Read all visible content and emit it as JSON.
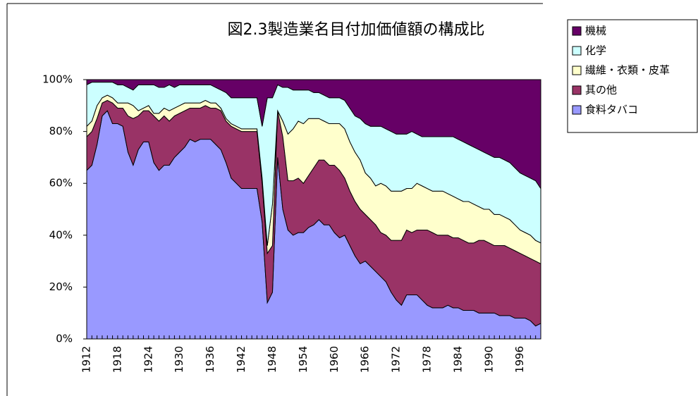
{
  "chart_data": {
    "type": "stacked_area",
    "title": "図2.3製造業名目付加価値額の構成比",
    "x": [
      1912,
      1913,
      1914,
      1915,
      1916,
      1917,
      1918,
      1919,
      1920,
      1921,
      1922,
      1923,
      1924,
      1925,
      1926,
      1927,
      1928,
      1929,
      1930,
      1931,
      1932,
      1933,
      1934,
      1935,
      1936,
      1937,
      1938,
      1939,
      1940,
      1941,
      1942,
      1943,
      1944,
      1945,
      1946,
      1947,
      1948,
      1949,
      1950,
      1951,
      1952,
      1953,
      1954,
      1955,
      1956,
      1957,
      1958,
      1959,
      1960,
      1961,
      1962,
      1963,
      1964,
      1965,
      1966,
      1967,
      1968,
      1969,
      1970,
      1971,
      1972,
      1973,
      1974,
      1975,
      1976,
      1977,
      1978,
      1979,
      1980,
      1981,
      1982,
      1983,
      1984,
      1985,
      1986,
      1987,
      1988,
      1989,
      1990,
      1991,
      1992,
      1993,
      1994,
      1995,
      1996,
      1997,
      1998,
      1999,
      2000
    ],
    "series": [
      {
        "name": "食料タバコ",
        "color": "#9999ff",
        "values": [
          65,
          67,
          75,
          86,
          88,
          83,
          83,
          82,
          72,
          67,
          73,
          76,
          76,
          68,
          65,
          67,
          67,
          70,
          72,
          74,
          77,
          76,
          77,
          77,
          77,
          75,
          73,
          68,
          62,
          60,
          58,
          58,
          58,
          58,
          45,
          14,
          18,
          70,
          50,
          42,
          40,
          41,
          41,
          43,
          44,
          46,
          44,
          44,
          41,
          39,
          40,
          36,
          32,
          29,
          30,
          28,
          26,
          24,
          22,
          18,
          15,
          13,
          17,
          17,
          17,
          15,
          13,
          12,
          12,
          12,
          13,
          12,
          12,
          11,
          11,
          11,
          10,
          10,
          10,
          10,
          9,
          9,
          9,
          8,
          8,
          8,
          7,
          5,
          6
        ]
      },
      {
        "name": "其の他",
        "color": "#993366",
        "values": [
          13,
          13,
          10,
          5,
          4,
          8,
          6,
          7,
          14,
          18,
          13,
          12,
          12,
          18,
          19,
          19,
          17,
          16,
          15,
          14,
          12,
          13,
          12,
          13,
          12,
          14,
          15,
          16,
          20,
          21,
          22,
          22,
          22,
          22,
          15,
          19,
          18,
          18,
          28,
          19,
          21,
          21,
          19,
          20,
          22,
          23,
          25,
          23,
          26,
          26,
          22,
          21,
          21,
          21,
          18,
          18,
          18,
          17,
          18,
          20,
          23,
          25,
          25,
          24,
          25,
          27,
          29,
          29,
          28,
          28,
          27,
          27,
          27,
          27,
          26,
          26,
          28,
          28,
          27,
          26,
          27,
          27,
          26,
          26,
          25,
          24,
          24,
          25,
          23
        ]
      },
      {
        "name": "繊維・衣類・皮革",
        "color": "#ffffcc",
        "values": [
          4,
          4,
          5,
          2,
          2,
          2,
          2,
          2,
          5,
          5,
          2,
          1,
          2,
          1,
          3,
          3,
          4,
          3,
          3,
          3,
          2,
          2,
          2,
          2,
          2,
          2,
          1,
          1,
          1,
          1,
          1,
          1,
          1,
          1,
          2,
          3,
          16,
          0,
          6,
          18,
          20,
          22,
          23,
          22,
          19,
          16,
          15,
          16,
          16,
          18,
          19,
          19,
          19,
          19,
          16,
          16,
          15,
          19,
          19,
          19,
          19,
          19,
          16,
          17,
          18,
          17,
          16,
          16,
          17,
          17,
          16,
          16,
          15,
          15,
          16,
          15,
          13,
          12,
          13,
          12,
          12,
          11,
          11,
          10,
          9,
          9,
          9,
          8,
          8
        ]
      },
      {
        "name": "化学",
        "color": "#ccffff",
        "values": [
          16,
          15,
          9,
          6,
          5,
          6,
          7,
          7,
          6,
          6,
          10,
          9,
          8,
          11,
          10,
          8,
          10,
          8,
          8,
          7,
          7,
          7,
          7,
          6,
          7,
          6,
          7,
          10,
          10,
          11,
          12,
          12,
          12,
          12,
          20,
          57,
          41,
          10,
          13,
          18,
          15,
          12,
          13,
          11,
          10,
          10,
          10,
          10,
          10,
          10,
          11,
          13,
          14,
          16,
          19,
          20,
          23,
          22,
          22,
          23,
          22,
          22,
          21,
          22,
          19,
          19,
          20,
          21,
          21,
          21,
          22,
          23,
          23,
          23,
          22,
          22,
          22,
          22,
          21,
          22,
          22,
          22,
          22,
          22,
          22,
          22,
          22,
          23,
          21
        ]
      },
      {
        "name": "機械",
        "color": "#660066",
        "values": [
          2,
          1,
          1,
          1,
          1,
          1,
          2,
          2,
          3,
          4,
          2,
          2,
          2,
          2,
          3,
          3,
          2,
          3,
          2,
          2,
          2,
          2,
          2,
          2,
          2,
          3,
          4,
          5,
          7,
          7,
          7,
          7,
          7,
          7,
          18,
          7,
          7,
          2,
          3,
          3,
          4,
          4,
          4,
          4,
          5,
          5,
          6,
          7,
          7,
          7,
          8,
          11,
          14,
          15,
          17,
          18,
          18,
          18,
          19,
          20,
          21,
          21,
          21,
          20,
          21,
          22,
          22,
          22,
          22,
          22,
          22,
          22,
          23,
          24,
          25,
          26,
          27,
          28,
          29,
          30,
          30,
          31,
          32,
          34,
          36,
          37,
          38,
          39,
          42
        ]
      }
    ],
    "xlim": [
      1912,
      2000
    ],
    "xticks": [
      1912,
      1918,
      1924,
      1930,
      1936,
      1942,
      1948,
      1954,
      1960,
      1966,
      1972,
      1978,
      1984,
      1990,
      1996
    ],
    "ylim": [
      0,
      100
    ],
    "yticks": [
      {
        "value": 0,
        "label": "0%"
      },
      {
        "value": 20,
        "label": "20%"
      },
      {
        "value": 40,
        "label": "40%"
      },
      {
        "value": 60,
        "label": "60%"
      },
      {
        "value": 80,
        "label": "80%"
      },
      {
        "value": 100,
        "label": "100%"
      }
    ],
    "legend": "right"
  }
}
